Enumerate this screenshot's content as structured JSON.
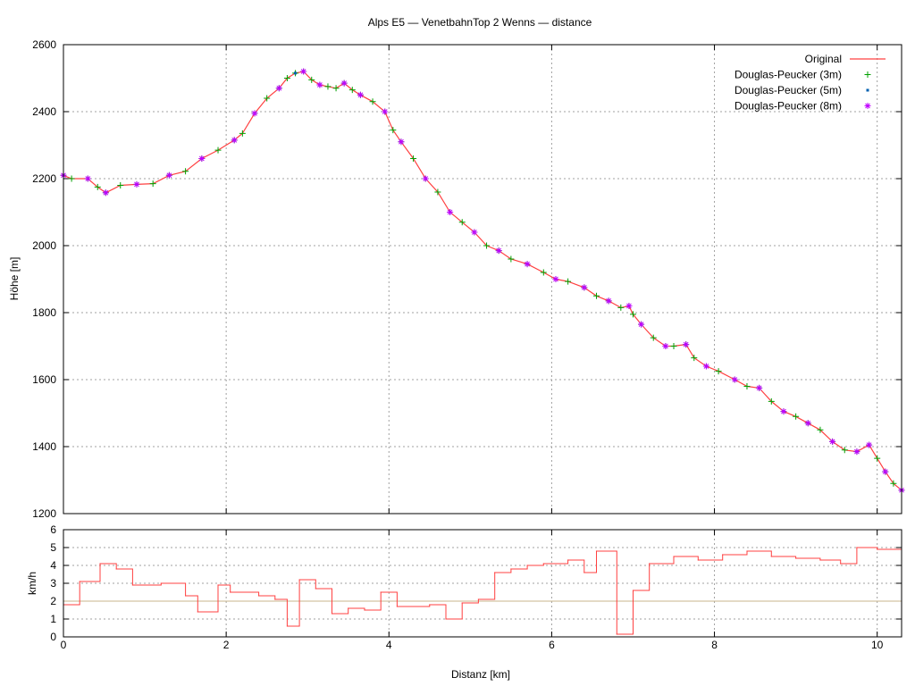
{
  "colors": {
    "original": "#ff4040",
    "dp3": "#00a000",
    "dp5": "#0060b0",
    "dp8": "#c000ff",
    "grid": "#a0a0a0",
    "reference": "#c8b48c"
  },
  "chart_data": [
    {
      "type": "line",
      "title": "Alps E5 — VenetbahnTop 2 Wenns — distance",
      "xlabel": "",
      "ylabel": "Höhe [m]",
      "xlim": [
        0,
        10.3
      ],
      "ylim": [
        1200,
        2600
      ],
      "x_ticks": [
        0,
        2,
        4,
        6,
        8,
        10
      ],
      "y_ticks": [
        1200,
        1400,
        1600,
        1800,
        2000,
        2200,
        2400,
        2600
      ],
      "grid": true,
      "legend_position": "top-right",
      "legend": [
        "Original",
        "Douglas-Peucker (3m)",
        "Douglas-Peucker (5m)",
        "Douglas-Peucker (8m)"
      ],
      "series": [
        {
          "name": "Original",
          "style": "line",
          "x": [
            0,
            0.1,
            0.3,
            0.42,
            0.52,
            0.7,
            0.9,
            1.1,
            1.3,
            1.5,
            1.7,
            1.9,
            2.1,
            2.2,
            2.35,
            2.5,
            2.65,
            2.75,
            2.85,
            2.95,
            3.05,
            3.15,
            3.25,
            3.35,
            3.45,
            3.55,
            3.65,
            3.8,
            3.95,
            4.05,
            4.15,
            4.3,
            4.45,
            4.6,
            4.75,
            4.9,
            5.05,
            5.2,
            5.35,
            5.5,
            5.7,
            5.9,
            6.05,
            6.2,
            6.4,
            6.55,
            6.7,
            6.85,
            6.95,
            7.0,
            7.1,
            7.25,
            7.4,
            7.5,
            7.65,
            7.75,
            7.9,
            8.05,
            8.25,
            8.4,
            8.55,
            8.7,
            8.85,
            9.0,
            9.15,
            9.3,
            9.45,
            9.6,
            9.75,
            9.9,
            10.0,
            10.1,
            10.2,
            10.3
          ],
          "y": [
            2210,
            2200,
            2200,
            2175,
            2158,
            2180,
            2183,
            2185,
            2210,
            2222,
            2260,
            2285,
            2315,
            2335,
            2395,
            2440,
            2470,
            2500,
            2515,
            2520,
            2495,
            2480,
            2475,
            2470,
            2485,
            2465,
            2450,
            2430,
            2400,
            2345,
            2310,
            2260,
            2200,
            2160,
            2100,
            2070,
            2040,
            2000,
            1985,
            1960,
            1945,
            1920,
            1900,
            1893,
            1875,
            1850,
            1835,
            1815,
            1820,
            1795,
            1765,
            1725,
            1700,
            1700,
            1705,
            1665,
            1640,
            1625,
            1600,
            1580,
            1575,
            1535,
            1505,
            1490,
            1470,
            1450,
            1415,
            1390,
            1385,
            1405,
            1365,
            1325,
            1290,
            1270
          ]
        },
        {
          "name": "Douglas-Peucker (3m)",
          "style": "points",
          "marker": "plus",
          "x": [
            0,
            0.1,
            0.3,
            0.42,
            0.52,
            0.7,
            0.9,
            1.1,
            1.3,
            1.5,
            1.7,
            1.9,
            2.1,
            2.2,
            2.35,
            2.5,
            2.65,
            2.75,
            2.85,
            2.95,
            3.05,
            3.15,
            3.25,
            3.35,
            3.45,
            3.55,
            3.65,
            3.8,
            3.95,
            4.05,
            4.15,
            4.3,
            4.45,
            4.6,
            4.75,
            4.9,
            5.05,
            5.2,
            5.35,
            5.5,
            5.7,
            5.9,
            6.05,
            6.2,
            6.4,
            6.55,
            6.7,
            6.85,
            6.95,
            7.0,
            7.1,
            7.25,
            7.4,
            7.5,
            7.65,
            7.75,
            7.9,
            8.05,
            8.25,
            8.4,
            8.55,
            8.7,
            8.85,
            9.0,
            9.15,
            9.3,
            9.45,
            9.6,
            9.75,
            9.9,
            10.0,
            10.1,
            10.2,
            10.3
          ],
          "y": [
            2210,
            2200,
            2200,
            2175,
            2158,
            2180,
            2183,
            2185,
            2210,
            2222,
            2260,
            2285,
            2315,
            2335,
            2395,
            2440,
            2470,
            2500,
            2515,
            2520,
            2495,
            2480,
            2475,
            2470,
            2485,
            2465,
            2450,
            2430,
            2400,
            2345,
            2310,
            2260,
            2200,
            2160,
            2100,
            2070,
            2040,
            2000,
            1985,
            1960,
            1945,
            1920,
            1900,
            1893,
            1875,
            1850,
            1835,
            1815,
            1820,
            1795,
            1765,
            1725,
            1700,
            1700,
            1705,
            1665,
            1640,
            1625,
            1600,
            1580,
            1575,
            1535,
            1505,
            1490,
            1470,
            1450,
            1415,
            1390,
            1385,
            1405,
            1365,
            1325,
            1290,
            1270
          ]
        },
        {
          "name": "Douglas-Peucker (5m)",
          "style": "points",
          "marker": "dot",
          "x": [
            0,
            0.3,
            0.52,
            0.9,
            1.3,
            1.7,
            2.1,
            2.35,
            2.65,
            2.85,
            2.95,
            3.15,
            3.45,
            3.65,
            3.95,
            4.15,
            4.45,
            4.75,
            5.05,
            5.35,
            5.7,
            6.05,
            6.4,
            6.7,
            6.95,
            7.1,
            7.4,
            7.65,
            7.9,
            8.25,
            8.55,
            8.85,
            9.15,
            9.45,
            9.75,
            9.9,
            10.1,
            10.3
          ],
          "y": [
            2210,
            2200,
            2158,
            2183,
            2210,
            2260,
            2315,
            2395,
            2470,
            2515,
            2520,
            2480,
            2485,
            2450,
            2400,
            2310,
            2200,
            2100,
            2040,
            1985,
            1945,
            1900,
            1875,
            1835,
            1820,
            1765,
            1700,
            1705,
            1640,
            1600,
            1575,
            1505,
            1470,
            1415,
            1385,
            1405,
            1325,
            1270
          ]
        },
        {
          "name": "Douglas-Peucker (8m)",
          "style": "points",
          "marker": "star",
          "x": [
            0,
            0.3,
            0.52,
            0.9,
            1.3,
            1.7,
            2.1,
            2.35,
            2.65,
            2.95,
            3.15,
            3.45,
            3.65,
            3.95,
            4.15,
            4.45,
            4.75,
            5.05,
            5.35,
            5.7,
            6.05,
            6.4,
            6.7,
            6.95,
            7.1,
            7.4,
            7.65,
            7.9,
            8.25,
            8.55,
            8.85,
            9.15,
            9.45,
            9.75,
            9.9,
            10.1,
            10.3
          ],
          "y": [
            2210,
            2200,
            2158,
            2183,
            2210,
            2260,
            2315,
            2395,
            2470,
            2520,
            2480,
            2485,
            2450,
            2400,
            2310,
            2200,
            2100,
            2040,
            1985,
            1945,
            1900,
            1875,
            1835,
            1820,
            1765,
            1700,
            1705,
            1640,
            1600,
            1575,
            1505,
            1470,
            1415,
            1385,
            1405,
            1325,
            1270
          ]
        }
      ]
    },
    {
      "type": "line",
      "title": "",
      "xlabel": "Distanz [km]",
      "ylabel": "km/h",
      "xlim": [
        0,
        10.3
      ],
      "ylim": [
        0,
        6
      ],
      "x_ticks": [
        0,
        2,
        4,
        6,
        8,
        10
      ],
      "y_ticks": [
        0,
        1,
        2,
        3,
        4,
        5,
        6
      ],
      "grid": true,
      "reference_line": 2,
      "series": [
        {
          "name": "",
          "style": "step",
          "x": [
            0,
            0.2,
            0.45,
            0.65,
            0.85,
            1.2,
            1.5,
            1.65,
            1.9,
            2.05,
            2.4,
            2.6,
            2.75,
            2.9,
            3.1,
            3.3,
            3.5,
            3.7,
            3.9,
            4.1,
            4.5,
            4.7,
            4.9,
            5.1,
            5.3,
            5.5,
            5.7,
            5.9,
            6.2,
            6.4,
            6.55,
            6.8,
            7.0,
            7.2,
            7.5,
            7.8,
            8.1,
            8.4,
            8.7,
            9.0,
            9.3,
            9.55,
            9.75,
            10.0
          ],
          "y": [
            1.8,
            3.1,
            4.1,
            3.8,
            2.9,
            3.0,
            2.3,
            1.4,
            2.9,
            2.5,
            2.3,
            2.1,
            0.6,
            3.2,
            2.7,
            1.3,
            1.6,
            1.5,
            2.5,
            1.7,
            1.8,
            1.0,
            1.9,
            2.1,
            3.6,
            3.8,
            4.0,
            4.1,
            4.3,
            3.6,
            4.8,
            0.15,
            2.6,
            4.1,
            4.5,
            4.3,
            4.6,
            4.8,
            4.5,
            4.4,
            4.3,
            4.1,
            5.0,
            4.9
          ]
        }
      ]
    }
  ]
}
